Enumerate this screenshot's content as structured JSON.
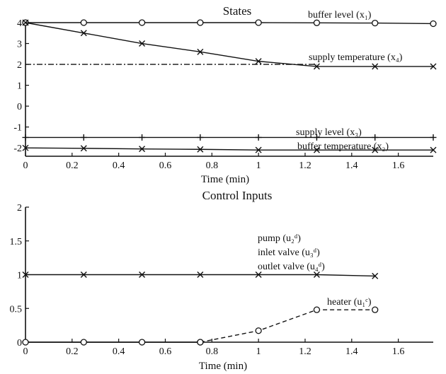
{
  "chart_data": [
    {
      "type": "line",
      "title": "States",
      "xlabel": "Time (min)",
      "ylabel": "",
      "xlim": [
        0,
        1.75
      ],
      "ylim": [
        -2.4,
        4
      ],
      "x_ticks": [
        "0",
        "0.2",
        "0.4",
        "0.6",
        "0.8",
        "1",
        "1.2",
        "1.4",
        "1.6"
      ],
      "y_ticks": [
        "-2",
        "-1",
        "0",
        "1",
        "2",
        "3",
        "4"
      ],
      "series": [
        {
          "name": "buffer level (x₁)",
          "marker": "circle",
          "dash": "solid",
          "x": [
            0,
            0.25,
            0.5,
            0.75,
            1.0,
            1.25,
            1.5,
            1.75
          ],
          "y": [
            4,
            4,
            4,
            4,
            4,
            3.99,
            3.98,
            3.95
          ]
        },
        {
          "name": "supply temperature (x₄)",
          "marker": "x",
          "dash": "solid",
          "x": [
            0,
            0.25,
            0.5,
            0.75,
            1.0,
            1.25,
            1.5,
            1.75
          ],
          "y": [
            4,
            3.5,
            3.0,
            2.6,
            2.15,
            1.9,
            1.9,
            1.9
          ]
        },
        {
          "name": "",
          "marker": "none",
          "dash": "dashdot",
          "x": [
            0,
            1.25
          ],
          "y": [
            2,
            2
          ]
        },
        {
          "name": "supply level (x₃)",
          "marker": "plus",
          "dash": "solid",
          "x": [
            0,
            0.25,
            0.5,
            0.75,
            1.0,
            1.25,
            1.5,
            1.75
          ],
          "y": [
            -1.5,
            -1.5,
            -1.5,
            -1.5,
            -1.5,
            -1.5,
            -1.5,
            -1.5
          ]
        },
        {
          "name": "buffer temperature (x₂)",
          "marker": "x",
          "dash": "solid",
          "x": [
            0,
            0.25,
            0.5,
            0.75,
            1.0,
            1.25,
            1.5,
            1.75
          ],
          "y": [
            -2,
            -2.02,
            -2.05,
            -2.07,
            -2.1,
            -2.1,
            -2.1,
            -2.1
          ]
        }
      ]
    },
    {
      "type": "line",
      "title": "Control Inputs",
      "xlabel": "Time (min)",
      "ylabel": "",
      "xlim": [
        0,
        1.75
      ],
      "ylim": [
        0,
        2
      ],
      "x_ticks": [
        "0",
        "0.2",
        "0.4",
        "0.6",
        "0.8",
        "1",
        "1.2",
        "1.4",
        "1.6"
      ],
      "y_ticks": [
        "0",
        "0.5",
        "1",
        "1.5",
        "2"
      ],
      "series": [
        {
          "name": "outlet valve (u₄ᵈ)",
          "marker": "x",
          "dash": "solid",
          "x": [
            0,
            0.25,
            0.5,
            0.75,
            1.0,
            1.25,
            1.5
          ],
          "y": [
            1,
            1,
            1,
            1,
            1,
            1,
            0.98
          ]
        },
        {
          "name": "heater (u₁ᶜ)",
          "marker": "circle",
          "dash": "solid",
          "x": [
            0,
            0.25,
            0.5,
            0.75
          ],
          "y": [
            0,
            0,
            0,
            0
          ]
        },
        {
          "name": "",
          "marker": "circle",
          "dash": "dashed",
          "x": [
            0.75,
            1.0,
            1.25,
            1.5
          ],
          "y": [
            0,
            0.17,
            0.48,
            0.48
          ]
        }
      ],
      "annotations": [
        "pump (u₂ᵈ)",
        "inlet valve (u₃ᵈ)"
      ]
    }
  ]
}
